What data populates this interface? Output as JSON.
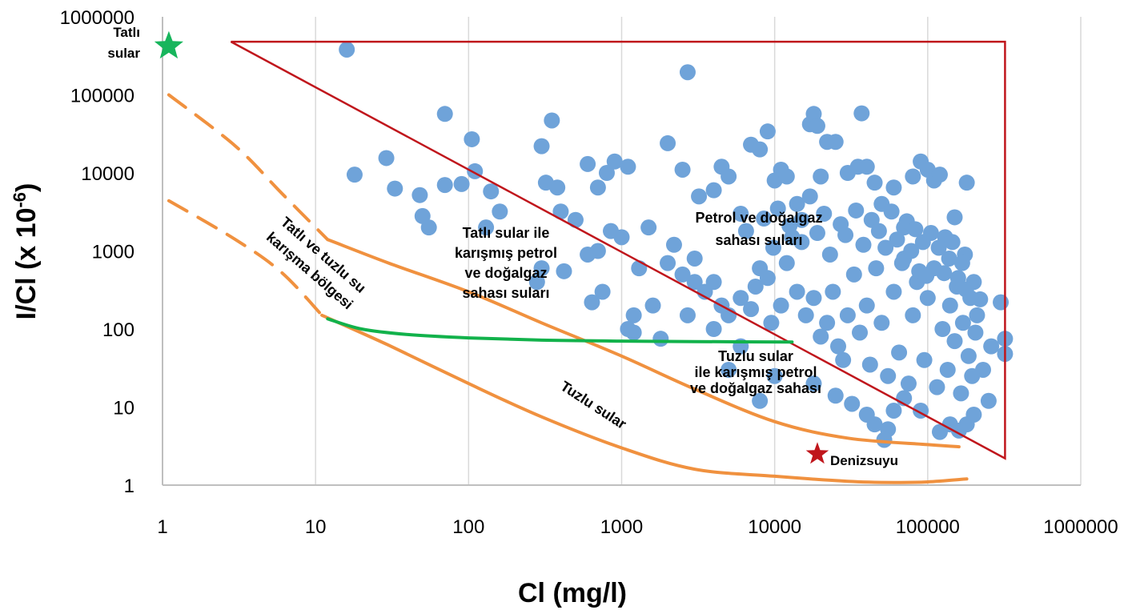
{
  "chart_data": {
    "type": "scatter",
    "xlabel": "Cl (mg/l)",
    "ylabel_main": "I/Cl (x 10",
    "ylabel_exp": "-6",
    "ylabel_close": ")",
    "x_scale": "log",
    "y_scale": "log",
    "xlim": [
      1,
      1000000
    ],
    "ylim": [
      1,
      1000000
    ],
    "x_ticks": [
      "1",
      "10",
      "100",
      "1000",
      "10000",
      "100000",
      "1000000"
    ],
    "y_ticks": [
      "1",
      "10",
      "100",
      "1000",
      "10000",
      "100000",
      "1000000"
    ],
    "grid": "vertical",
    "colors": {
      "points": "#6fa3d9",
      "triangle": "#c0161c",
      "mixing_lines": "#f0913f",
      "green_line": "#12b24b",
      "fresh_star": "#17b55c",
      "sea_star": "#c0161c"
    },
    "markers": [
      {
        "label": "Tatlı sular",
        "lines": [
          "Tatlı",
          "sular"
        ],
        "x": 1.1,
        "y": 420000
      },
      {
        "label": "Denizsuyu",
        "lines": [
          "Denizsuyu"
        ],
        "x": 19000,
        "y": 2.5
      }
    ],
    "regions": [
      {
        "lines": [
          "Tatlı sular ile",
          "karışmış petrol",
          "ve doğalgaz",
          "sahası suları"
        ]
      },
      {
        "lines": [
          "Petrol ve doğalgaz",
          "sahası suları"
        ]
      },
      {
        "lines": [
          "Tuzlu sular",
          "ile karışmış petrol",
          "ve doğalgaz sahası"
        ]
      },
      {
        "lines": [
          "Tuzlu sular"
        ]
      },
      {
        "lines": [
          "Tatlı ve tuzlu su",
          "karışma bölgesi"
        ]
      }
    ],
    "triangle": [
      [
        2.8,
        480000
      ],
      [
        320000,
        480000
      ],
      [
        320000,
        2.2
      ]
    ],
    "mixing_lines": [
      {
        "style": "solid",
        "points": [
          [
            12,
            1400
          ],
          [
            30,
            700
          ],
          [
            100,
            300
          ],
          [
            300,
            120
          ],
          [
            1000,
            45
          ],
          [
            3000,
            17
          ],
          [
            10000,
            6.5
          ],
          [
            30000,
            4.0
          ],
          [
            100000,
            3.3
          ],
          [
            160000,
            3.1
          ]
        ]
      },
      {
        "style": "dashed",
        "points": [
          [
            1.1,
            100000
          ],
          [
            3,
            22000
          ],
          [
            6,
            5500
          ],
          [
            12,
            1400
          ]
        ]
      },
      {
        "style": "solid",
        "points": [
          [
            11,
            150
          ],
          [
            30,
            62
          ],
          [
            100,
            20
          ],
          [
            300,
            7.5
          ],
          [
            1000,
            3.0
          ],
          [
            3000,
            1.6
          ],
          [
            10000,
            1.3
          ],
          [
            30000,
            1.12
          ],
          [
            60000,
            1.08
          ],
          [
            100000,
            1.1
          ],
          [
            180000,
            1.2
          ]
        ]
      },
      {
        "style": "dashed",
        "points": [
          [
            1.1,
            4400
          ],
          [
            3,
            1400
          ],
          [
            6,
            530
          ],
          [
            11,
            150
          ]
        ]
      }
    ],
    "green_line": [
      [
        12,
        135
      ],
      [
        20,
        100
      ],
      [
        40,
        85
      ],
      [
        100,
        77
      ],
      [
        300,
        72
      ],
      [
        1000,
        70
      ],
      [
        3000,
        69
      ],
      [
        13000,
        68
      ]
    ],
    "points": [
      [
        16,
        380000
      ],
      [
        2700,
        195000
      ],
      [
        18,
        9500
      ],
      [
        29,
        15500
      ],
      [
        33,
        6300
      ],
      [
        48,
        5200
      ],
      [
        70,
        57000
      ],
      [
        50,
        2800
      ],
      [
        55,
        2000
      ],
      [
        70,
        7000
      ],
      [
        90,
        7200
      ],
      [
        105,
        27000
      ],
      [
        110,
        10500
      ],
      [
        130,
        2000
      ],
      [
        140,
        5800
      ],
      [
        160,
        3200
      ],
      [
        300,
        22000
      ],
      [
        350,
        47000
      ],
      [
        320,
        7500
      ],
      [
        380,
        6500
      ],
      [
        400,
        3200
      ],
      [
        280,
        400
      ],
      [
        420,
        550
      ],
      [
        300,
        600
      ],
      [
        600,
        13000
      ],
      [
        700,
        6500
      ],
      [
        800,
        10000
      ],
      [
        900,
        14000
      ],
      [
        700,
        1000
      ],
      [
        750,
        300
      ],
      [
        640,
        220
      ],
      [
        1100,
        12000
      ],
      [
        1300,
        600
      ],
      [
        1200,
        150
      ],
      [
        1600,
        200
      ],
      [
        1800,
        75
      ],
      [
        1100,
        100
      ],
      [
        1200,
        90
      ],
      [
        2000,
        24000
      ],
      [
        2500,
        11000
      ],
      [
        2700,
        150
      ],
      [
        3000,
        400
      ],
      [
        3200,
        5000
      ],
      [
        4000,
        6000
      ],
      [
        4500,
        12000
      ],
      [
        5000,
        9000
      ],
      [
        6000,
        3000
      ],
      [
        7000,
        23000
      ],
      [
        8000,
        20000
      ],
      [
        9000,
        34000
      ],
      [
        10000,
        8000
      ],
      [
        11000,
        11000
      ],
      [
        12000,
        9000
      ],
      [
        13000,
        1500
      ],
      [
        14000,
        4000
      ],
      [
        15000,
        2500
      ],
      [
        17000,
        42000
      ],
      [
        18000,
        57000
      ],
      [
        19000,
        40000
      ],
      [
        20000,
        9000
      ],
      [
        22000,
        25000
      ],
      [
        25000,
        25000
      ],
      [
        30000,
        10000
      ],
      [
        35000,
        12000
      ],
      [
        37000,
        58000
      ],
      [
        40000,
        12000
      ],
      [
        45000,
        7500
      ],
      [
        50000,
        4000
      ],
      [
        60000,
        6500
      ],
      [
        70000,
        2000
      ],
      [
        80000,
        9000
      ],
      [
        90000,
        14000
      ],
      [
        100000,
        11000
      ],
      [
        110000,
        8000
      ],
      [
        120000,
        9500
      ],
      [
        150000,
        2700
      ],
      [
        180000,
        7500
      ],
      [
        200000,
        400
      ],
      [
        220000,
        240
      ],
      [
        300000,
        220
      ],
      [
        320000,
        75
      ],
      [
        320000,
        48
      ],
      [
        4000,
        100
      ],
      [
        5000,
        30
      ],
      [
        6000,
        60
      ],
      [
        8000,
        12
      ],
      [
        10000,
        25
      ],
      [
        18000,
        20
      ],
      [
        25000,
        14
      ],
      [
        32000,
        11
      ],
      [
        40000,
        8
      ],
      [
        45000,
        6
      ],
      [
        55000,
        5.2
      ],
      [
        52000,
        3.8
      ],
      [
        60000,
        9
      ],
      [
        70000,
        13
      ],
      [
        90000,
        9
      ],
      [
        120000,
        4.8
      ],
      [
        140000,
        6
      ],
      [
        160000,
        5
      ],
      [
        180000,
        6
      ],
      [
        200000,
        8
      ],
      [
        250000,
        12
      ],
      [
        230000,
        30
      ],
      [
        260000,
        60
      ],
      [
        500,
        2500
      ],
      [
        600,
        900
      ],
      [
        850,
        1800
      ],
      [
        1000,
        1500
      ],
      [
        1500,
        2000
      ],
      [
        2000,
        700
      ],
      [
        2200,
        1200
      ],
      [
        2500,
        500
      ],
      [
        3000,
        800
      ],
      [
        3500,
        300
      ],
      [
        4000,
        400
      ],
      [
        4500,
        200
      ],
      [
        5000,
        150
      ],
      [
        6000,
        250
      ],
      [
        7000,
        180
      ],
      [
        7500,
        350
      ],
      [
        8000,
        600
      ],
      [
        9000,
        450
      ],
      [
        9500,
        120
      ],
      [
        11000,
        200
      ],
      [
        12000,
        700
      ],
      [
        14000,
        300
      ],
      [
        16000,
        150
      ],
      [
        18000,
        250
      ],
      [
        20000,
        80
      ],
      [
        22000,
        120
      ],
      [
        24000,
        300
      ],
      [
        26000,
        60
      ],
      [
        28000,
        40
      ],
      [
        30000,
        150
      ],
      [
        33000,
        500
      ],
      [
        36000,
        90
      ],
      [
        40000,
        200
      ],
      [
        42000,
        35
      ],
      [
        46000,
        600
      ],
      [
        50000,
        120
      ],
      [
        55000,
        25
      ],
      [
        60000,
        300
      ],
      [
        65000,
        50
      ],
      [
        70000,
        800
      ],
      [
        75000,
        20
      ],
      [
        80000,
        150
      ],
      [
        85000,
        400
      ],
      [
        95000,
        40
      ],
      [
        100000,
        250
      ],
      [
        110000,
        600
      ],
      [
        115000,
        18
      ],
      [
        125000,
        100
      ],
      [
        130000,
        1500
      ],
      [
        135000,
        30
      ],
      [
        140000,
        200
      ],
      [
        150000,
        70
      ],
      [
        155000,
        350
      ],
      [
        165000,
        15
      ],
      [
        170000,
        120
      ],
      [
        175000,
        900
      ],
      [
        185000,
        45
      ],
      [
        190000,
        250
      ],
      [
        195000,
        25
      ],
      [
        205000,
        90
      ],
      [
        210000,
        150
      ],
      [
        6500,
        1800
      ],
      [
        8500,
        2600
      ],
      [
        9800,
        1100
      ],
      [
        10500,
        3500
      ],
      [
        12500,
        2100
      ],
      [
        15000,
        1300
      ],
      [
        17000,
        5000
      ],
      [
        19000,
        1700
      ],
      [
        21000,
        3000
      ],
      [
        23000,
        900
      ],
      [
        27000,
        2200
      ],
      [
        29000,
        1600
      ],
      [
        34000,
        3300
      ],
      [
        38000,
        1200
      ],
      [
        43000,
        2500
      ],
      [
        48000,
        1800
      ],
      [
        53000,
        1100
      ],
      [
        58000,
        3200
      ],
      [
        63000,
        1400
      ],
      [
        68000,
        700
      ],
      [
        73000,
        2400
      ],
      [
        78000,
        1000
      ],
      [
        83000,
        1900
      ],
      [
        88000,
        550
      ],
      [
        93000,
        1300
      ],
      [
        98000,
        480
      ],
      [
        105000,
        1700
      ],
      [
        118000,
        1100
      ],
      [
        128000,
        520
      ],
      [
        138000,
        800
      ],
      [
        145000,
        1300
      ],
      [
        158000,
        450
      ],
      [
        168000,
        700
      ],
      [
        178000,
        320
      ]
    ]
  }
}
